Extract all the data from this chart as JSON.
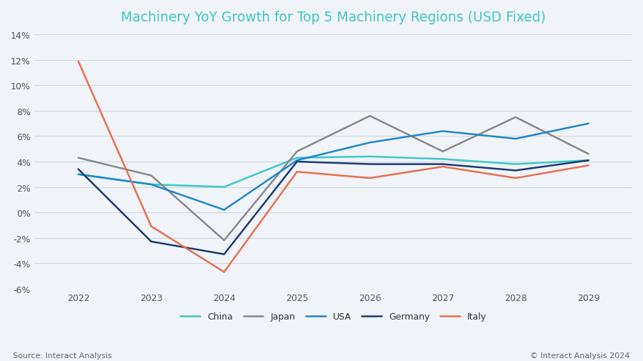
{
  "title": "Machinery YoY Growth for Top 5 Machinery Regions (USD Fixed)",
  "title_color": "#3EC8C8",
  "background_color": "#f0f3f7",
  "years": [
    2022,
    2023,
    2024,
    2025,
    2026,
    2027,
    2028,
    2029
  ],
  "series": {
    "China": {
      "values": [
        3.0,
        2.2,
        2.0,
        4.3,
        4.4,
        4.2,
        3.8,
        4.1
      ],
      "color": "#3EC8C8",
      "linewidth": 1.8
    },
    "Japan": {
      "values": [
        4.3,
        2.9,
        -2.2,
        4.8,
        7.6,
        4.8,
        7.5,
        4.6
      ],
      "color": "#888888",
      "linewidth": 1.8
    },
    "USA": {
      "values": [
        3.0,
        2.2,
        0.2,
        4.1,
        5.5,
        6.4,
        5.8,
        7.0
      ],
      "color": "#1E88C8",
      "linewidth": 1.8
    },
    "Germany": {
      "values": [
        3.4,
        -2.3,
        -3.3,
        4.0,
        3.8,
        3.8,
        3.3,
        4.1
      ],
      "color": "#1C3A70",
      "linewidth": 1.8
    },
    "Italy": {
      "values": [
        11.9,
        -1.1,
        -4.7,
        3.2,
        2.7,
        3.6,
        2.7,
        3.7
      ],
      "color": "#E87050",
      "linewidth": 1.8
    }
  },
  "ylim": [
    -6,
    14
  ],
  "yticks": [
    -6,
    -4,
    -2,
    0,
    2,
    4,
    6,
    8,
    10,
    12,
    14
  ],
  "xlim": [
    2021.4,
    2029.6
  ],
  "grid_color": "#d0d8e4",
  "source_text": "Source: Interact Analysis",
  "copyright_text": "© Interact Analysis 2024",
  "footer_color": "#666666",
  "legend_order": [
    "China",
    "Japan",
    "USA",
    "Germany",
    "Italy"
  ],
  "title_fontsize": 13.5,
  "tick_fontsize": 9,
  "legend_fontsize": 9
}
